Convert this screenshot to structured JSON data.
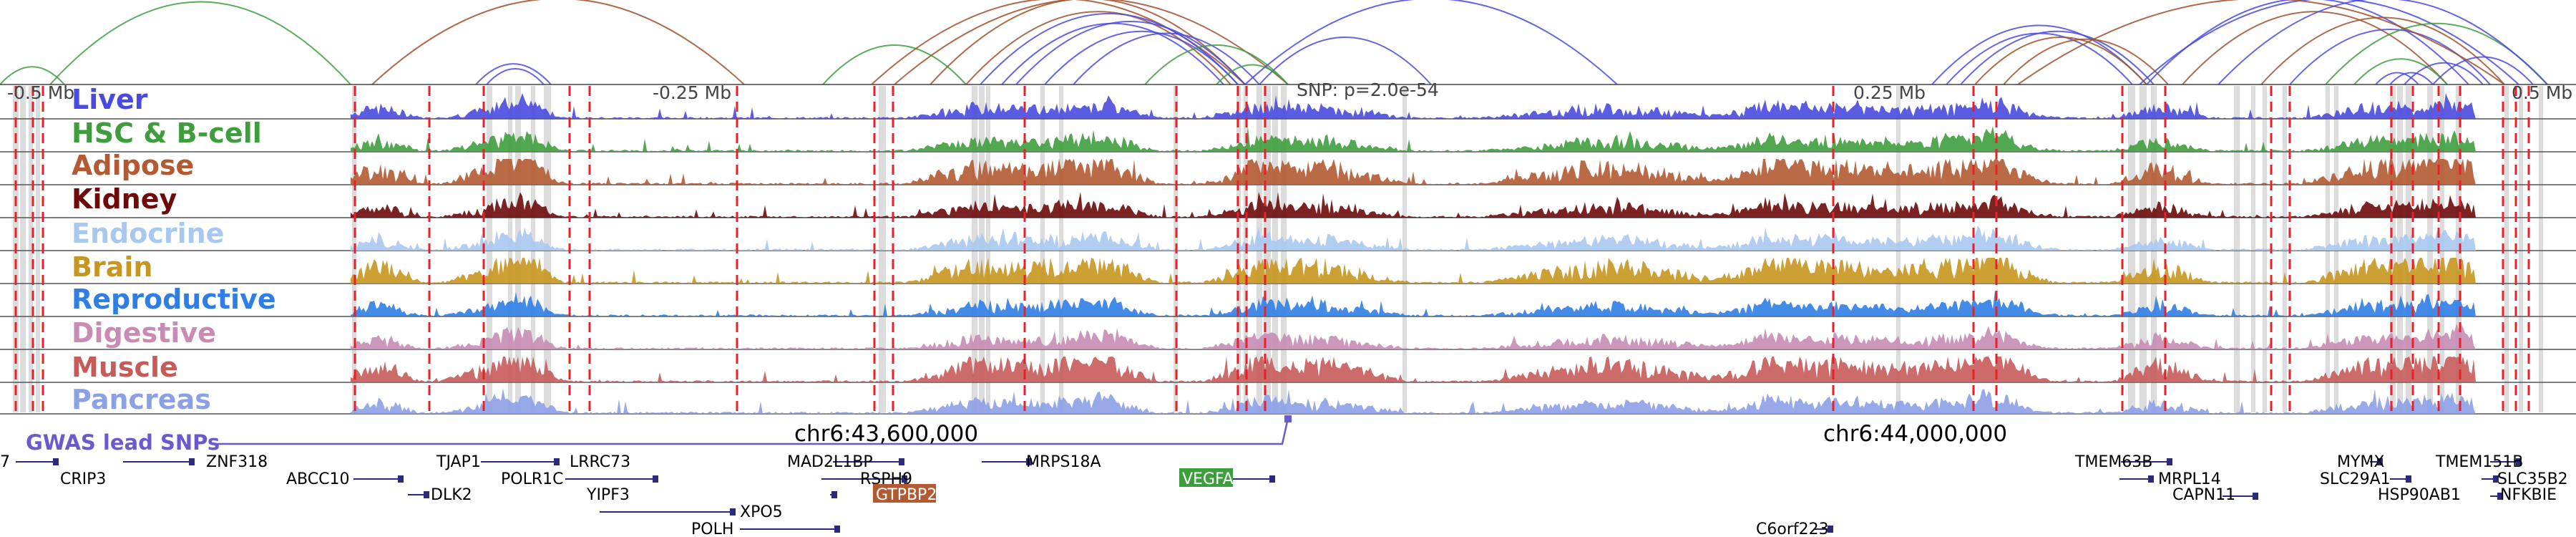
{
  "browser": {
    "ruler": {
      "labels": [
        {
          "text": "-0.5 Mb"
        },
        {
          "text": "-0.25 Mb"
        },
        {
          "text": "SNP: p=2.0e-54"
        },
        {
          "text": "0.25 Mb"
        },
        {
          "text": "0.5 Mb"
        }
      ]
    },
    "tracks": [
      {
        "name": "Liver",
        "color": "#4a4ae0"
      },
      {
        "name": "HSC & B-cell",
        "color": "#3e9e3e"
      },
      {
        "name": "Adipose",
        "color": "#b45a32"
      },
      {
        "name": "Kidney",
        "color": "#6e0a0a"
      },
      {
        "name": "Endocrine",
        "color": "#a8c8f0"
      },
      {
        "name": "Brain",
        "color": "#c8961e"
      },
      {
        "name": "Reproductive",
        "color": "#2e7ee6"
      },
      {
        "name": "Digestive",
        "color": "#c88cb4"
      },
      {
        "name": "Muscle",
        "color": "#c85a5a"
      },
      {
        "name": "Pancreas",
        "color": "#8ca0e6"
      }
    ],
    "gwas_label": "GWAS lead SNPs",
    "gwas_color": "#6a5acd",
    "coordinates": [
      "chr6:43,600,000",
      "chr6:44,000,000"
    ],
    "genes": [
      {
        "name": "7"
      },
      {
        "name": "CRIP3"
      },
      {
        "name": "ZNF318"
      },
      {
        "name": "ABCC10"
      },
      {
        "name": "TJAP1"
      },
      {
        "name": "DLK2"
      },
      {
        "name": "LRRC73"
      },
      {
        "name": "POLR1C"
      },
      {
        "name": "YIPF3"
      },
      {
        "name": "XPO5"
      },
      {
        "name": "POLH"
      },
      {
        "name": "MAD2L1BP"
      },
      {
        "name": "RSPH9"
      },
      {
        "name": "GTPBP2",
        "highlight": "#b45a32"
      },
      {
        "name": "MRPS18A"
      },
      {
        "name": "VEGFA",
        "highlight": "#3e9e3e"
      },
      {
        "name": "C6orf223"
      },
      {
        "name": "TMEM63B"
      },
      {
        "name": "MRPL14"
      },
      {
        "name": "CAPN11"
      },
      {
        "name": "MYMX"
      },
      {
        "name": "SLC29A1"
      },
      {
        "name": "HSP90AB1"
      },
      {
        "name": "TMEM151B"
      },
      {
        "name": "SLC35B2"
      },
      {
        "name": "NFKBIE"
      }
    ],
    "loop_colors": [
      "#3e9e3e",
      "#a0522d",
      "#4a4ae0"
    ],
    "highlight_line_color": "#e8202a",
    "shade_color": "#dcdcdc"
  }
}
